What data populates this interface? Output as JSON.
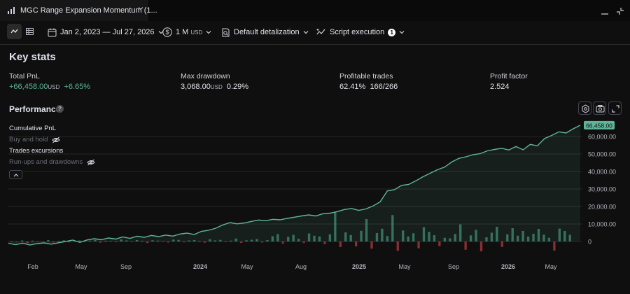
{
  "tab": {
    "title": "MGC Range Expansion Momentum (1..."
  },
  "toolbar": {
    "date_range": "Jan 2, 2023 — Jul 27, 2026",
    "capital_value": "1 M",
    "capital_unit": "USD",
    "detalization": "Default detalization",
    "script_execution": "Script execution",
    "script_execution_count": "1"
  },
  "key_stats": {
    "title": "Key stats",
    "total_pnl_label": "Total PnL",
    "total_pnl_value": "+66,458.00",
    "total_pnl_unit": "USD",
    "total_pnl_pct": "+6.65%",
    "max_drawdown_label": "Max drawdown",
    "max_drawdown_value": "3,068.00",
    "max_drawdown_unit": "USD",
    "max_drawdown_pct": "0.29%",
    "profitable_trades_label": "Profitable trades",
    "profitable_trades_pct": "62.41%",
    "profitable_trades_count": "166/266",
    "profit_factor_label": "Profit factor",
    "profit_factor_value": "2.524"
  },
  "performance": {
    "title": "Performance",
    "help": "?",
    "legend": {
      "cumulative": "Cumulative PnL",
      "buy_hold": "Buy and hold",
      "trades_excursions": "Trades excursions",
      "runups": "Run-ups and drawdowns"
    }
  },
  "colors": {
    "accent_green": "#5fb59a",
    "loss_red": "#b23a3a",
    "bg": "#0f0f0f"
  },
  "chart_data": {
    "type": "line",
    "x_ticks": [
      "Feb",
      "May",
      "Sep",
      "2024",
      "May",
      "Aug",
      "2025",
      "May",
      "Sep",
      "2026",
      "May"
    ],
    "y_ticks": [
      "0",
      "10,000.00",
      "20,000.00",
      "30,000.00",
      "40,000.00",
      "50,000.00",
      "60,000.00"
    ],
    "ylim": [
      -8000,
      66458
    ],
    "last_value_label": "66,458.00",
    "series": [
      {
        "values": [
          -1000,
          -1800,
          -900,
          -2000,
          -1200,
          -800,
          -1500,
          -700,
          0,
          800,
          -500,
          900,
          1600,
          1000,
          2000,
          1400,
          2600,
          1800,
          3000,
          2400,
          3500,
          2800,
          3700,
          3100,
          4300,
          4800,
          4000,
          5800,
          6400,
          7600,
          9500,
          10800,
          10100,
          10600,
          11500,
          12300,
          11900,
          12700,
          12400,
          13200,
          13900,
          14600,
          15200,
          14600,
          15900,
          16200,
          17100,
          18300,
          18900,
          17800,
          18600,
          20300,
          22700,
          28900,
          29600,
          32100,
          32600,
          34700,
          37000,
          39000,
          41000,
          42500,
          45400,
          47500,
          48400,
          49600,
          50200,
          51800,
          52600,
          53300,
          52300,
          54300,
          52400,
          55500,
          54700,
          58800,
          60600,
          62700,
          62000,
          64400,
          66458
        ]
      }
    ],
    "bars": [
      300,
      -400,
      600,
      -900,
      500,
      200,
      -300,
      800,
      -600,
      400,
      700,
      -500,
      300,
      600,
      -200,
      500,
      900,
      -700,
      400,
      300,
      -400,
      1200,
      600,
      -300,
      800,
      400,
      -900,
      700,
      500,
      300,
      -600,
      1100,
      900,
      -500,
      600,
      800,
      400,
      -700,
      1300,
      600,
      900,
      -400,
      500,
      1700,
      -800,
      700,
      1000,
      1400,
      -600,
      800,
      3000,
      4200,
      -1200,
      2700,
      3800,
      1500,
      -900,
      4600,
      3300,
      2900,
      -1500,
      4100,
      17000,
      -3200,
      5200,
      3700,
      -2800,
      6100,
      12800,
      -4100,
      4800,
      7300,
      3100,
      15100,
      -5300,
      6300,
      2900,
      4700,
      -3900,
      8200,
      5500,
      3600,
      -2600,
      2100,
      1800,
      4300,
      9800,
      -4700,
      3500,
      6700,
      -5600,
      2400,
      5000,
      8400,
      -3100,
      4100,
      7600,
      3300,
      6000,
      2800,
      4400,
      7200,
      3900,
      2100,
      -5200,
      7400,
      6000,
      3800
    ]
  }
}
